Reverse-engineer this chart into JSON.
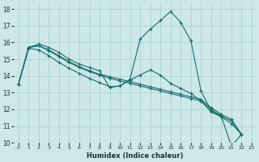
{
  "xlabel": "Humidex (Indice chaleur)",
  "ylabel": "",
  "bg_color": "#cce8e8",
  "grid_color": "#aacece",
  "line_color": "#1a6b6b",
  "xlim": [
    -0.5,
    23.5
  ],
  "ylim": [
    10,
    18.4
  ],
  "yticks": [
    10,
    11,
    12,
    13,
    14,
    15,
    16,
    17,
    18
  ],
  "xticks": [
    0,
    1,
    2,
    3,
    4,
    5,
    6,
    7,
    8,
    9,
    10,
    11,
    12,
    13,
    14,
    15,
    16,
    17,
    18,
    19,
    20,
    21,
    22,
    23
  ],
  "lines": [
    {
      "x": [
        0,
        1,
        2,
        3,
        4,
        5,
        6,
        7,
        8,
        9,
        10,
        11,
        12,
        13,
        14,
        15,
        16,
        17,
        18,
        19,
        20,
        21,
        22,
        23
      ],
      "y": [
        13.5,
        15.7,
        15.9,
        15.7,
        15.4,
        15.0,
        14.7,
        14.5,
        14.3,
        13.3,
        13.4,
        13.8,
        16.2,
        16.8,
        17.3,
        17.85,
        17.2,
        16.1,
        13.1,
        11.9,
        11.6,
        9.8,
        10.5,
        null
      ]
    },
    {
      "x": [
        0,
        1,
        2,
        3,
        4,
        5,
        6,
        7,
        8,
        9,
        10,
        11,
        12,
        13,
        14,
        15,
        16,
        17,
        18,
        19,
        20,
        21,
        22,
        23
      ],
      "y": [
        13.5,
        15.7,
        15.8,
        15.55,
        15.2,
        14.85,
        14.55,
        14.3,
        14.1,
        13.95,
        13.8,
        13.65,
        13.5,
        13.35,
        13.2,
        13.05,
        12.9,
        12.75,
        12.6,
        12.1,
        11.7,
        11.4,
        10.5,
        null
      ]
    },
    {
      "x": [
        0,
        1,
        2,
        3,
        4,
        5,
        6,
        7,
        8,
        9,
        10,
        11,
        12,
        13,
        14,
        15,
        16,
        17,
        18,
        19,
        20,
        21,
        22,
        23
      ],
      "y": [
        13.5,
        15.7,
        15.8,
        15.5,
        15.15,
        14.8,
        14.5,
        14.25,
        14.05,
        13.85,
        13.7,
        13.55,
        13.4,
        13.25,
        13.1,
        12.95,
        12.8,
        12.65,
        12.5,
        12.0,
        11.6,
        11.3,
        10.5,
        null
      ]
    },
    {
      "x": [
        0,
        1,
        2,
        3,
        4,
        5,
        6,
        7,
        8,
        9,
        10,
        11,
        12,
        13,
        14,
        15,
        16,
        17,
        18,
        19,
        20,
        21,
        22,
        23
      ],
      "y": [
        13.5,
        15.65,
        15.55,
        15.2,
        14.8,
        14.45,
        14.15,
        13.85,
        13.6,
        13.35,
        13.4,
        13.75,
        14.05,
        14.35,
        14.05,
        13.55,
        13.25,
        12.95,
        12.5,
        11.85,
        11.55,
        11.15,
        10.5,
        null
      ]
    }
  ]
}
